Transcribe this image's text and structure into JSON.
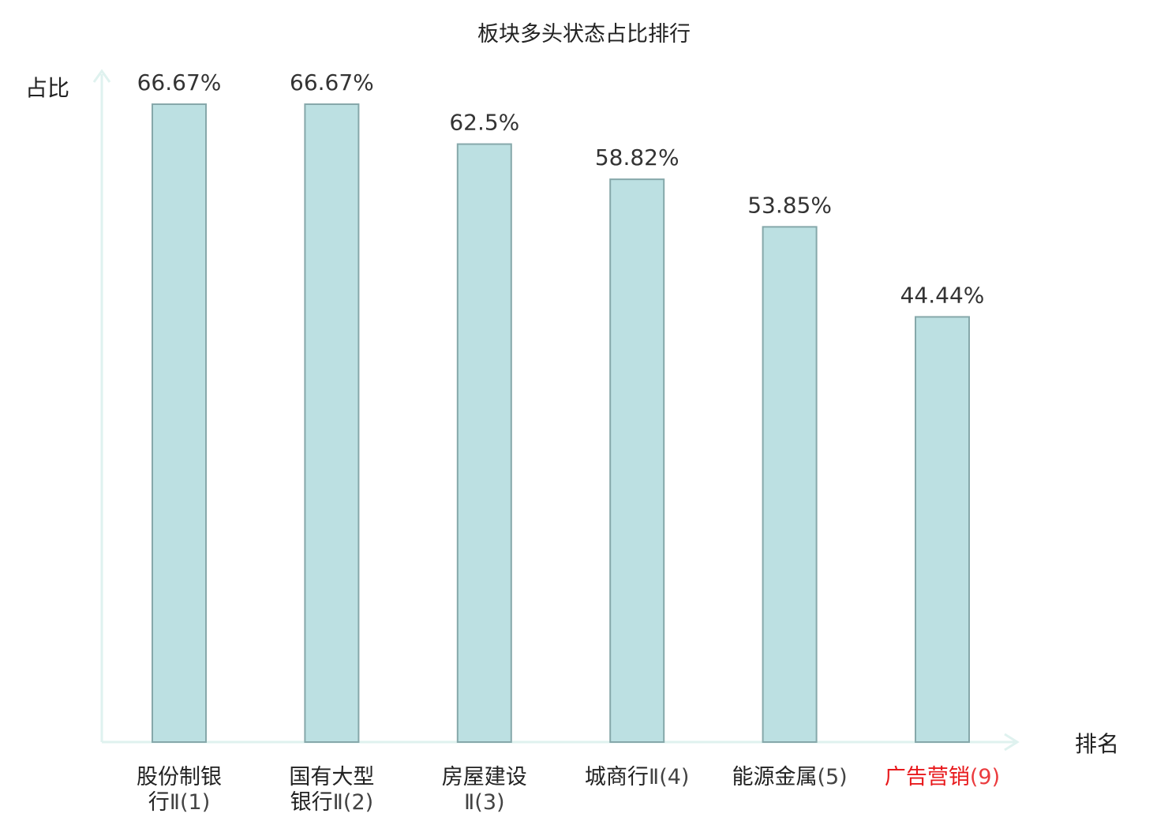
{
  "chart_data": {
    "type": "bar",
    "title": "板块多头状态占比排行",
    "xlabel": "排名",
    "ylabel": "占比",
    "ylim": [
      0,
      70
    ],
    "grid": false,
    "legend": "none",
    "categories": [
      {
        "name_lines": [
          "股份制银",
          "行"
        ],
        "rank_suffix": "Ⅱ(1)",
        "highlight": false
      },
      {
        "name_lines": [
          "国有大型",
          "银行"
        ],
        "rank_suffix": "Ⅱ(2)",
        "highlight": false
      },
      {
        "name_lines": [
          "房屋建设",
          ""
        ],
        "rank_suffix": "Ⅱ(3)",
        "highlight": false
      },
      {
        "name_lines": [
          "城商行"
        ],
        "rank_suffix": "Ⅱ(4)",
        "highlight": false
      },
      {
        "name_lines": [
          "能源金属"
        ],
        "rank_suffix": "(5)",
        "highlight": false
      },
      {
        "name_lines": [
          "广告营销"
        ],
        "rank_suffix": "(9)",
        "highlight": true
      }
    ],
    "values": [
      66.67,
      66.67,
      62.5,
      58.82,
      53.85,
      44.44
    ],
    "value_labels": [
      "66.67%",
      "66.67%",
      "62.5%",
      "58.82%",
      "53.85%",
      "44.44%"
    ]
  },
  "colors": {
    "bar_fill": "#bce0e2",
    "bar_stroke": "#86a8aa",
    "axis": "#dff2ef",
    "highlight_text": "#e8191c",
    "text": "#222222"
  }
}
